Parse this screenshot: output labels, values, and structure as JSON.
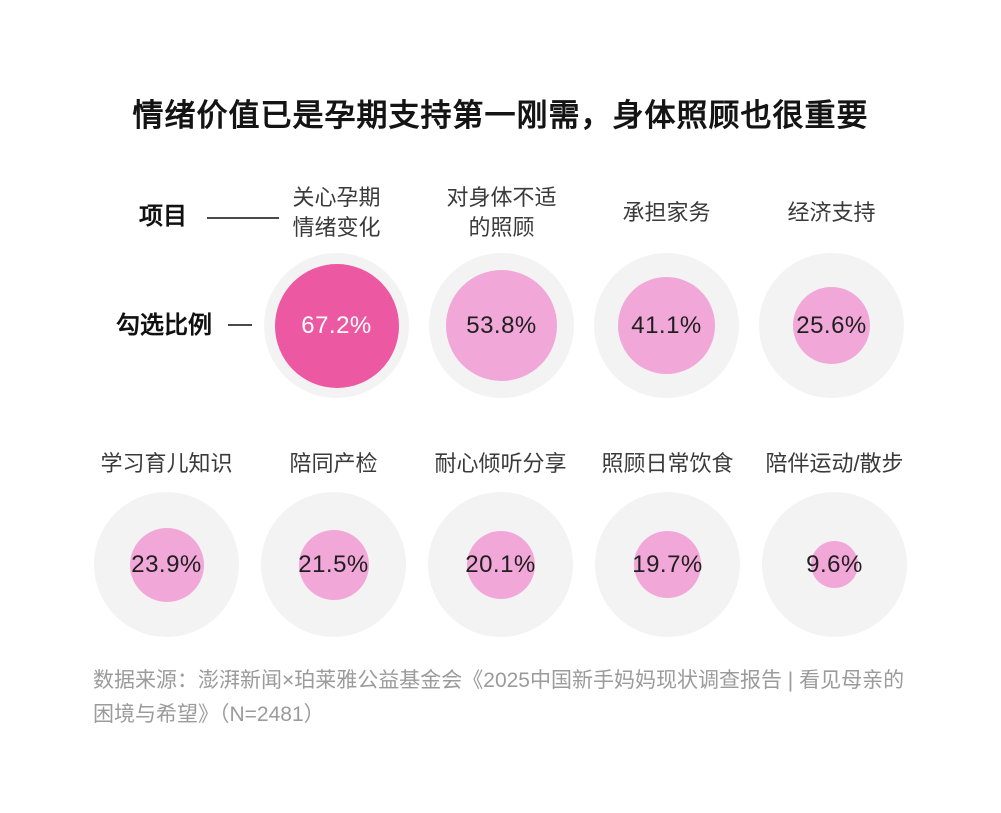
{
  "chart_data": {
    "type": "bubble",
    "title": "情绪价值已是孕期支持第一刚需，身体照顾也很重要",
    "unit": "%",
    "category_axis_label": "项目",
    "value_axis_label": "勾选比例",
    "rows": [
      {
        "items": [
          {
            "label": "关心孕期\n情绪变化",
            "value": 67.2,
            "display": "67.2%",
            "highlight": true
          },
          {
            "label": "对身体不适\n的照顾",
            "value": 53.8,
            "display": "53.8%",
            "highlight": false
          },
          {
            "label": "承担家务",
            "value": 41.1,
            "display": "41.1%",
            "highlight": false
          },
          {
            "label": "经济支持",
            "value": 25.6,
            "display": "25.6%",
            "highlight": false
          }
        ]
      },
      {
        "items": [
          {
            "label": "学习育儿知识",
            "value": 23.9,
            "display": "23.9%",
            "highlight": false
          },
          {
            "label": "陪同产检",
            "value": 21.5,
            "display": "21.5%",
            "highlight": false
          },
          {
            "label": "耐心倾听分享",
            "value": 20.1,
            "display": "20.1%",
            "highlight": false
          },
          {
            "label": "照顾日常饮食",
            "value": 19.7,
            "display": "19.7%",
            "highlight": false
          },
          {
            "label": "陪伴运动/散步",
            "value": 9.6,
            "display": "9.6%",
            "highlight": false
          }
        ]
      }
    ],
    "colors": {
      "highlight_bubble": "#ec58a1",
      "bubble": "#f1a8d8",
      "halo": "#f3f3f3",
      "value_on_highlight": "#ffffff",
      "value_on_bubble": "#1f1f1f",
      "title_text": "#141414",
      "label_text": "#3a3a3a",
      "source_text": "#9b9b9b"
    },
    "legend_position": "left",
    "grid": false
  },
  "source_note": "数据来源：澎湃新闻×珀莱雅公益基金会《2025中国新手妈妈现状调查报告 | 看见母亲的困境与希望》（N=2481）"
}
